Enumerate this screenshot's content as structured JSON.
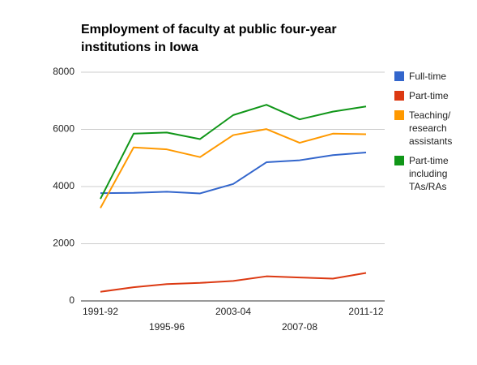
{
  "chart_data": {
    "type": "line",
    "title": "Employment of faculty at public four-year institutions in Iowa",
    "categories": [
      "1991-92",
      null,
      "1995-96",
      null,
      "2003-04",
      null,
      "2007-08",
      null,
      "2011-12"
    ],
    "series": [
      {
        "name": "Full-time",
        "color": "#3366cc",
        "values": [
          3770,
          3780,
          3820,
          3760,
          4090,
          4850,
          4920,
          5100,
          5190
        ]
      },
      {
        "name": "Part-time",
        "color": "#dc3912",
        "values": [
          320,
          480,
          590,
          630,
          700,
          860,
          820,
          780,
          980
        ]
      },
      {
        "name": "Teaching/ research assistants",
        "color": "#ff9900",
        "values": [
          3250,
          5370,
          5300,
          5030,
          5800,
          6010,
          5530,
          5850,
          5830
        ]
      },
      {
        "name": "Part-time including TAs/RAs",
        "color": "#109618",
        "values": [
          3570,
          5850,
          5890,
          5660,
          6500,
          6860,
          6350,
          6620,
          6800
        ]
      }
    ],
    "ylim": [
      0,
      8000
    ],
    "yticks": [
      0,
      2000,
      4000,
      6000,
      8000
    ],
    "grid": true,
    "legend": "right"
  }
}
